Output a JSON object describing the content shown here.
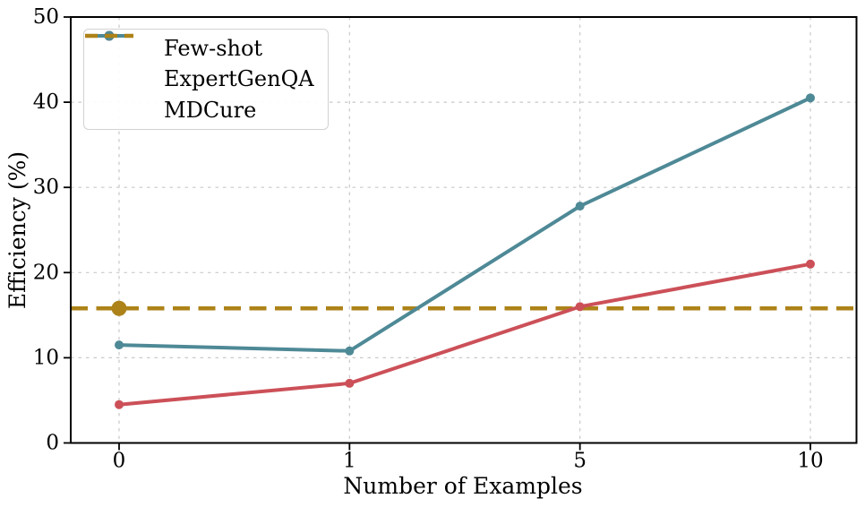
{
  "chart_data": {
    "type": "line",
    "title": "",
    "xlabel": "Number of Examples",
    "ylabel": "Efficiency (%)",
    "categories": [
      "0",
      "1",
      "5",
      "10"
    ],
    "x_axis_categorical": true,
    "ylim": [
      0,
      50
    ],
    "yticks": [
      0,
      10,
      20,
      30,
      40,
      50
    ],
    "grid": true,
    "legend_position": "upper-left",
    "series": [
      {
        "name": "Few-shot",
        "kind": "line",
        "color": "#cc5058",
        "marker": "circle",
        "values": [
          4.5,
          7.0,
          16.0,
          21.0
        ]
      },
      {
        "name": "ExpertGenQA",
        "kind": "line",
        "color": "#4e8996",
        "marker": "circle",
        "values": [
          11.5,
          10.8,
          27.8,
          40.5
        ]
      },
      {
        "name": "MDCure",
        "kind": "hline",
        "color": "#ad8218",
        "dashed": true,
        "value": 15.8,
        "marker_at_category": "0"
      }
    ]
  },
  "legend": {
    "items": [
      {
        "label": "Few-shot",
        "color": "#cc5058",
        "style": "solid-dot"
      },
      {
        "label": "ExpertGenQA",
        "color": "#4e8996",
        "style": "solid-dot"
      },
      {
        "label": "MDCure",
        "color": "#ad8218",
        "style": "dashed"
      }
    ]
  },
  "colors": {
    "background": "#ffffff",
    "grid": "#c9c9c9",
    "axis": "#000000",
    "few_shot": "#cc5058",
    "expertgenqa": "#4e8996",
    "mdcure": "#ad8218"
  }
}
